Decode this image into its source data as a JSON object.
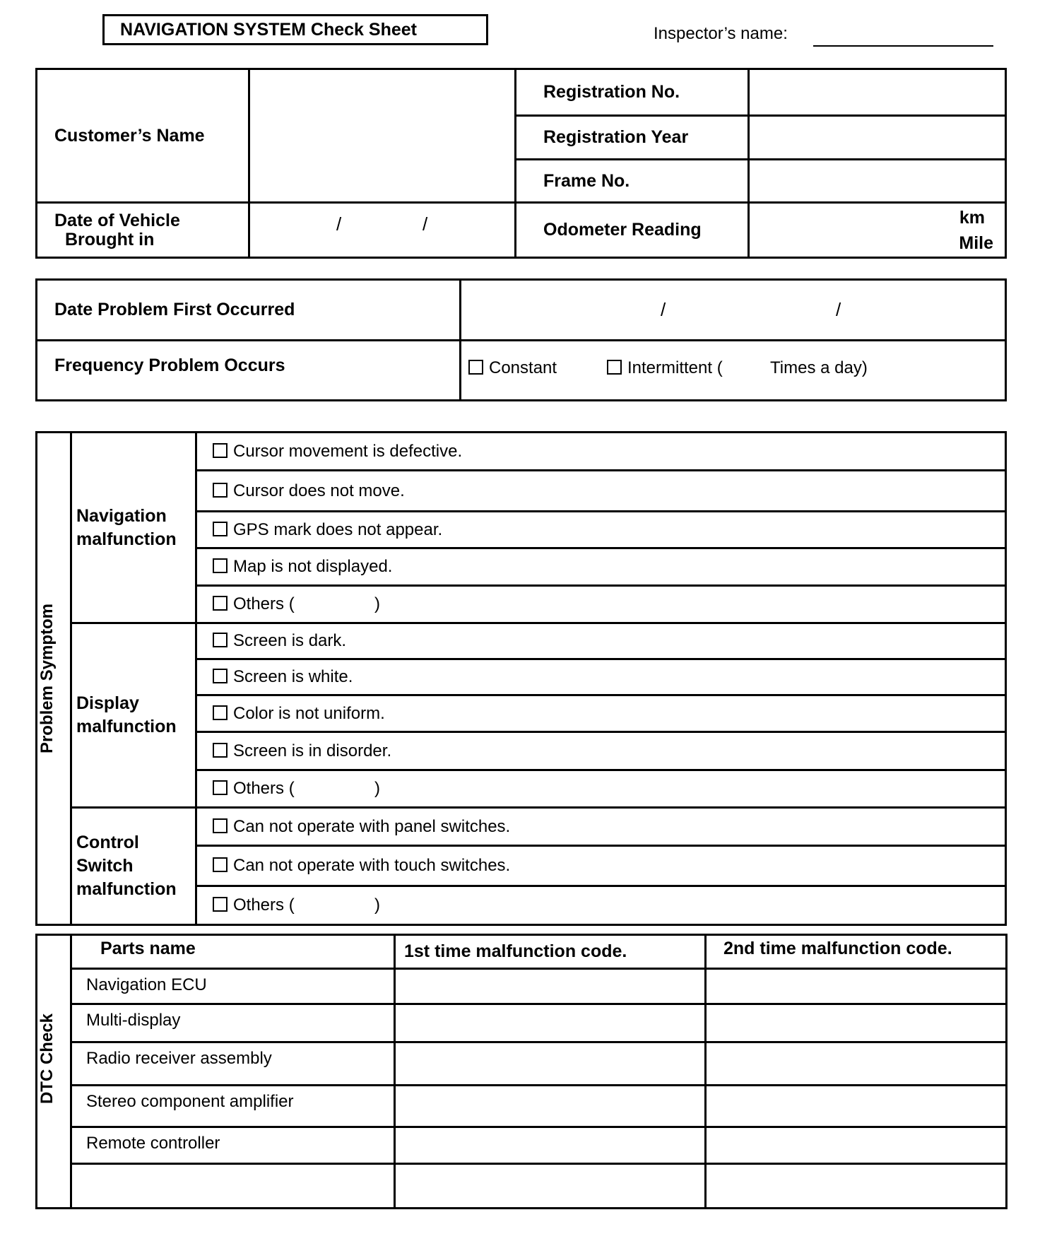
{
  "title": "NAVIGATION SYSTEM Check Sheet",
  "inspector_label": "Inspector’s name:",
  "vehicle": {
    "customer_name_label": "Customer’s Name",
    "date_brought_in_label_line1": "Date of Vehicle",
    "date_brought_in_label_line2": "Brought in",
    "date_separator": "/",
    "registration_no_label": "Registration No.",
    "registration_year_label": "Registration Year",
    "frame_no_label": "Frame No.",
    "odometer_label": "Odometer Reading",
    "odometer_unit_km": "km",
    "odometer_unit_mile": "Mile"
  },
  "problem": {
    "date_first_label": "Date Problem First Occurred",
    "frequency_label": "Frequency Problem Occurs",
    "constant_label": "Constant",
    "intermittent_label": "Intermittent (",
    "times_a_day_label": "Times a day)"
  },
  "symptom": {
    "section_label": "Problem Symptom",
    "groups": [
      {
        "label_lines": [
          "Navigation",
          "malfunction"
        ],
        "items": [
          "Cursor movement is defective.",
          "Cursor does not move.",
          "GPS mark does not appear.",
          "Map is not displayed.",
          "Others (                 )"
        ]
      },
      {
        "label_lines": [
          "Display",
          "malfunction"
        ],
        "items": [
          "Screen is dark.",
          "Screen is white.",
          "Color is not uniform.",
          "Screen is in disorder.",
          "Others (                 )"
        ]
      },
      {
        "label_lines": [
          "Control",
          "Switch",
          "malfunction"
        ],
        "items": [
          "Can not operate with panel switches.",
          "Can not operate with touch switches.",
          "Others (                 )"
        ]
      }
    ]
  },
  "dtc": {
    "section_label": "DTC Check",
    "headers": [
      "Parts name",
      "1st time malfunction code.",
      "2nd time malfunction code."
    ],
    "parts": [
      "Navigation ECU",
      "Multi-display",
      "Radio receiver assembly",
      "Stereo component amplifier",
      "Remote controller",
      ""
    ]
  }
}
